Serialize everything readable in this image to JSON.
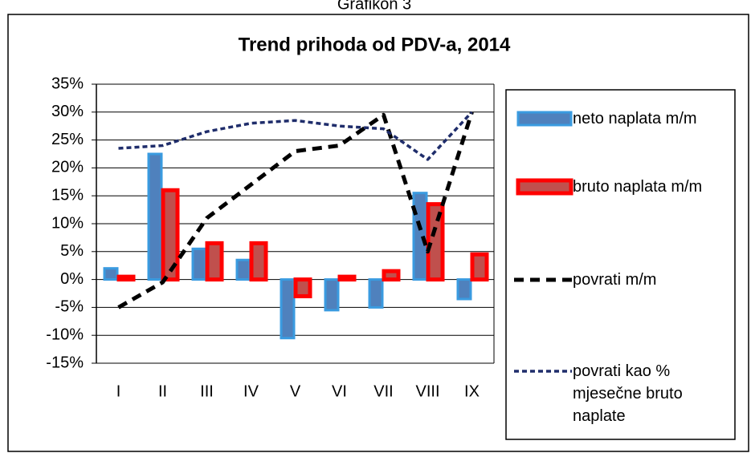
{
  "caption": "Grafikon 3",
  "chart_data": {
    "type": "bar-line",
    "title": "Trend prihoda od PDV-a, 2014",
    "categories": [
      "I",
      "II",
      "III",
      "IV",
      "V",
      "VI",
      "VII",
      "VIII",
      "IX"
    ],
    "ylim": [
      -15,
      35
    ],
    "yticks": [
      {
        "value": -15,
        "label": "-15%"
      },
      {
        "value": -10,
        "label": "-10%"
      },
      {
        "value": -5,
        "label": "-5%"
      },
      {
        "value": 0,
        "label": "0%"
      },
      {
        "value": 5,
        "label": "5%"
      },
      {
        "value": 10,
        "label": "10%"
      },
      {
        "value": 15,
        "label": "15%"
      },
      {
        "value": 20,
        "label": "20%"
      },
      {
        "value": 25,
        "label": "25%"
      },
      {
        "value": 30,
        "label": "30%"
      },
      {
        "value": 35,
        "label": "35%"
      }
    ],
    "grid": true,
    "legend": "right",
    "series": [
      {
        "name": "neto naplata m/m",
        "kind": "bar",
        "color": "#4f81bd",
        "values": [
          2,
          22.5,
          5.5,
          3.5,
          -10.5,
          -5.5,
          -5,
          15.5,
          -3.5
        ]
      },
      {
        "name": "bruto naplata m/m",
        "kind": "bar",
        "color": "#ff0000",
        "values": [
          0.5,
          16,
          6.5,
          6.5,
          -3,
          0.5,
          1.5,
          13.5,
          4.5
        ]
      },
      {
        "name": "povrati m/m",
        "kind": "line",
        "color": "#000000",
        "values": [
          -5,
          -0.5,
          11,
          17,
          23,
          24,
          29.5,
          5,
          30
        ]
      },
      {
        "name": "povrati kao % mjesečne bruto naplate",
        "kind": "line",
        "color": "#1f2d6b",
        "values": [
          23.5,
          24,
          26.5,
          28,
          28.5,
          27.5,
          27,
          21.5,
          30
        ]
      }
    ]
  }
}
